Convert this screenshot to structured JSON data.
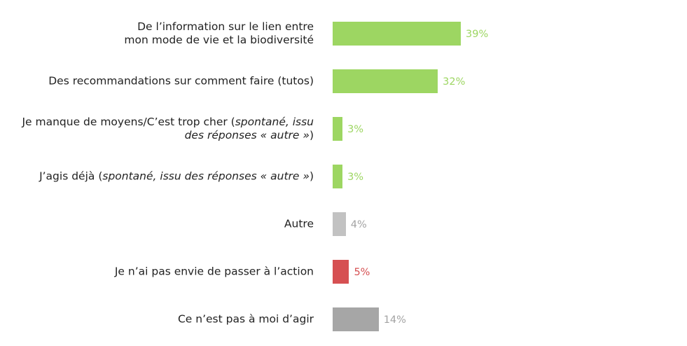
{
  "chart_data": {
    "type": "bar",
    "orientation": "horizontal",
    "title": "",
    "xlabel": "",
    "ylabel": "",
    "xlim": [
      0,
      100
    ],
    "grid": false,
    "legend": "none",
    "unit": "%",
    "categories": [
      "De l’information sur le lien entre mon mode de vie et la biodiversité",
      "Des recommandations sur comment faire (tutos)",
      "Je manque de moyens/C’est trop cher (spontané, issu des réponses « autre »)",
      "J’agis déjà (spontané, issu des réponses « autre »)",
      "Autre",
      "Je n’ai pas envie de passer à l’action",
      "Ce n’est pas à moi d’agir"
    ],
    "category_lines": [
      [
        [
          {
            "t": "De l’information sur le lien entre",
            "i": false
          }
        ],
        [
          {
            "t": "mon mode de vie et la biodiversité",
            "i": false
          }
        ]
      ],
      [
        [
          {
            "t": "Des recommandations sur comment faire (tutos)",
            "i": false
          }
        ]
      ],
      [
        [
          {
            "t": "Je manque de moyens/C’est trop cher (",
            "i": false
          },
          {
            "t": "spontané, issu",
            "i": true
          }
        ],
        [
          {
            "t": "des réponses « autre »",
            "i": true
          },
          {
            "t": ")",
            "i": false
          }
        ]
      ],
      [
        [
          {
            "t": "J’agis déjà (",
            "i": false
          },
          {
            "t": "spontané, issu des réponses « autre »",
            "i": true
          },
          {
            "t": ")",
            "i": false
          }
        ]
      ],
      [
        [
          {
            "t": "Autre",
            "i": false
          }
        ]
      ],
      [
        [
          {
            "t": "Je n’ai pas envie de passer à l’action",
            "i": false
          }
        ]
      ],
      [
        [
          {
            "t": "Ce n’est pas à moi d’agir",
            "i": false
          }
        ]
      ]
    ],
    "values": [
      39,
      32,
      3,
      3,
      4,
      5,
      14
    ],
    "value_labels": [
      "39%",
      "32%",
      "3%",
      "3%",
      "4%",
      "5%",
      "14%"
    ],
    "bar_colors": [
      "#9dd662",
      "#9dd662",
      "#9dd662",
      "#9dd662",
      "#c2c2c2",
      "#d65052",
      "#a6a6a6"
    ],
    "value_label_colors": [
      "#9dd662",
      "#9dd662",
      "#9dd662",
      "#9dd662",
      "#a3a3a3",
      "#d65052",
      "#a3a3a3"
    ]
  }
}
